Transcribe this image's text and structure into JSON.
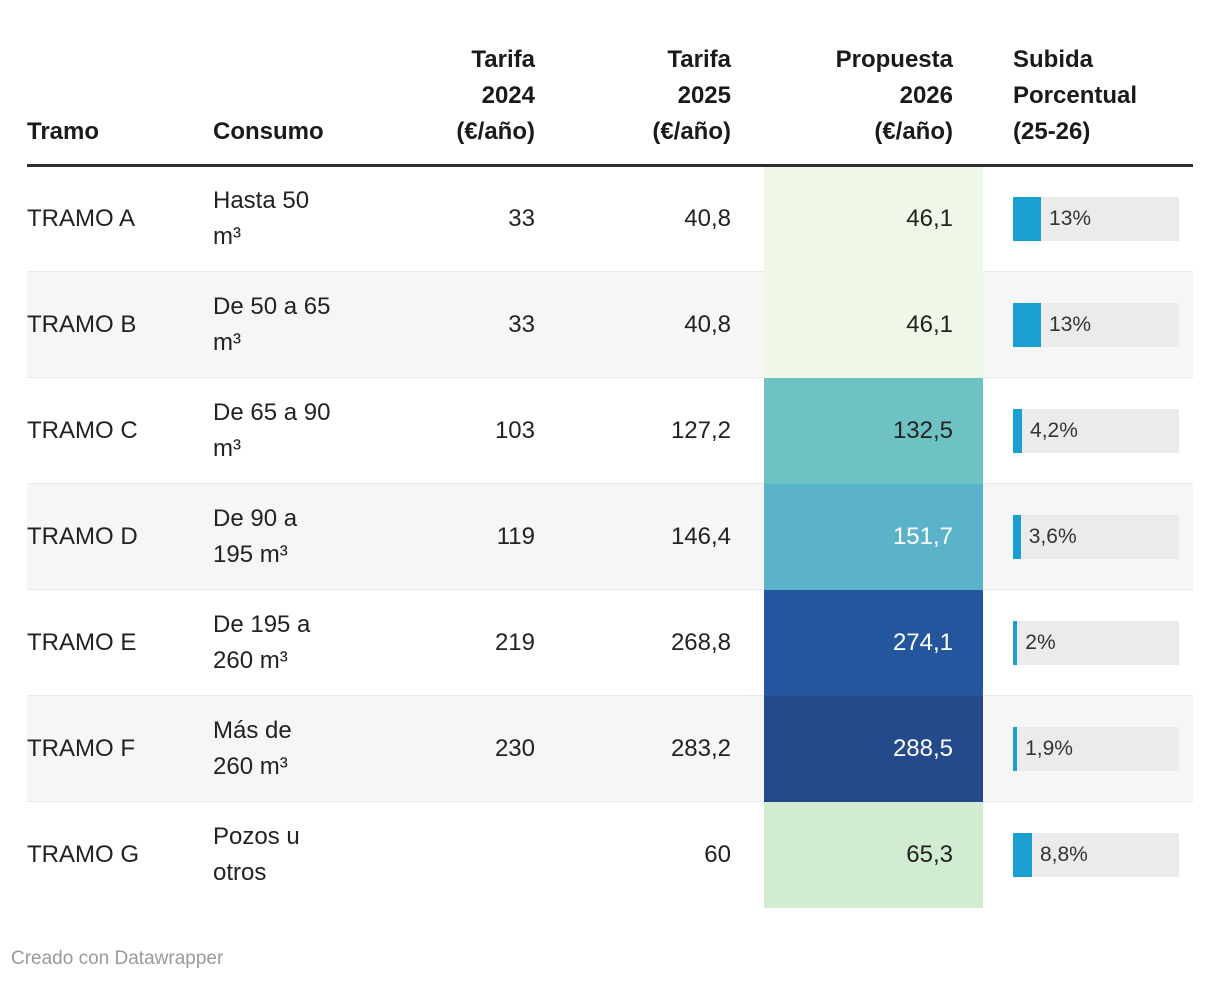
{
  "chart_data": {
    "type": "table",
    "columns": [
      "Tramo",
      "Consumo",
      "Tarifa 2024 (€/año)",
      "Tarifa 2025 (€/año)",
      "Propuesta 2026 (€/año)",
      "Subida Porcentual (25-26)"
    ],
    "rows": [
      [
        "TRAMO A",
        "Hasta 50 m³",
        33,
        40.8,
        46.1,
        "13%"
      ],
      [
        "TRAMO B",
        "De 50 a 65 m³",
        33,
        40.8,
        46.1,
        "13%"
      ],
      [
        "TRAMO C",
        "De 65 a 90 m³",
        103,
        127.2,
        132.5,
        "4,2%"
      ],
      [
        "TRAMO D",
        "De 90 a 195 m³",
        119,
        146.4,
        151.7,
        "3,6%"
      ],
      [
        "TRAMO E",
        "De 195 a 260 m³",
        219,
        268.8,
        274.1,
        "2%"
      ],
      [
        "TRAMO F",
        "Más de 260 m³",
        230,
        283.2,
        288.5,
        "1,9%"
      ],
      [
        "TRAMO G",
        "Pozos u otros",
        null,
        60,
        65.3,
        "8,8%"
      ]
    ],
    "notes": "Propuesta 2026 cells are color-coded from light green (low) through teal to dark blue (high); Subida Porcentual shown as blue bars on gray tracks"
  },
  "table": {
    "headers": {
      "tramo": "Tramo",
      "consumo": "Consumo",
      "tarifa_2024": "Tarifa\n2024\n(€/año)",
      "tarifa_2025": "Tarifa\n2025\n(€/año)",
      "propuesta_2026": "Propuesta\n2026\n(€/año)",
      "subida": "Subida\nPorcentual\n(25-26)"
    },
    "bar_scale_max": 77,
    "rows": [
      {
        "tramo": "TRAMO A",
        "consumo": "Hasta 50\nm³",
        "tarifa_2024": "33",
        "tarifa_2025": "40,8",
        "propuesta_2026": "46,1",
        "propuesta_bg": "#eef7e8",
        "propuesta_color": "#222222",
        "subida_label": "13%",
        "subida_value": 13
      },
      {
        "tramo": "TRAMO B",
        "consumo": "De 50 a 65\nm³",
        "tarifa_2024": "33",
        "tarifa_2025": "40,8",
        "propuesta_2026": "46,1",
        "propuesta_bg": "#eef7e8",
        "propuesta_color": "#222222",
        "subida_label": "13%",
        "subida_value": 13
      },
      {
        "tramo": "TRAMO C",
        "consumo": "De 65 a 90\nm³",
        "tarifa_2024": "103",
        "tarifa_2025": "127,2",
        "propuesta_2026": "132,5",
        "propuesta_bg": "#6fc2c4",
        "propuesta_color": "#222222",
        "subida_label": "4,2%",
        "subida_value": 4.2
      },
      {
        "tramo": "TRAMO D",
        "consumo": "De 90 a\n195 m³",
        "tarifa_2024": "119",
        "tarifa_2025": "146,4",
        "propuesta_2026": "151,7",
        "propuesta_bg": "#5bb3c9",
        "propuesta_color": "#ffffff",
        "subida_label": "3,6%",
        "subida_value": 3.6
      },
      {
        "tramo": "TRAMO E",
        "consumo": "De 195 a\n260 m³",
        "tarifa_2024": "219",
        "tarifa_2025": "268,8",
        "propuesta_2026": "274,1",
        "propuesta_bg": "#24569f",
        "propuesta_color": "#ffffff",
        "subida_label": "2%",
        "subida_value": 2
      },
      {
        "tramo": "TRAMO F",
        "consumo": "Más de\n260 m³",
        "tarifa_2024": "230",
        "tarifa_2025": "283,2",
        "propuesta_2026": "288,5",
        "propuesta_bg": "#254a8c",
        "propuesta_color": "#ffffff",
        "subida_label": "1,9%",
        "subida_value": 1.9
      },
      {
        "tramo": "TRAMO G",
        "consumo": "Pozos u\notros",
        "tarifa_2024": "",
        "tarifa_2025": "60",
        "propuesta_2026": "65,3",
        "propuesta_bg": "#d1ecd0",
        "propuesta_color": "#222222",
        "subida_label": "8,8%",
        "subida_value": 8.8
      }
    ]
  },
  "colors": {
    "bar_fill": "#1b9fd0",
    "bar_track": "#ebebeb",
    "zebra_row_bg": "#f6f6f6",
    "header_rule": "#2e2e2e",
    "row_divider": "#e9e9e9",
    "text": "#222222",
    "footer_text": "#9a9a9a"
  },
  "footer": {
    "credit": "Creado con Datawrapper"
  }
}
